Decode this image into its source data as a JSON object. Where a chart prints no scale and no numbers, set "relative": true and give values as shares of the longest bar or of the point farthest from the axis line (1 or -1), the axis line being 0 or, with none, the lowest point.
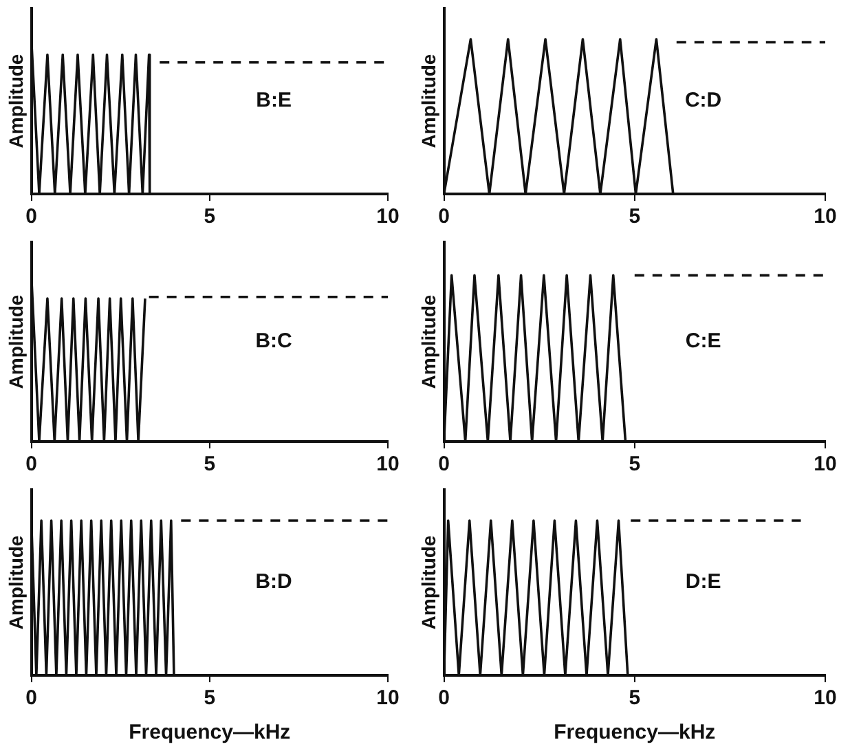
{
  "chart_data": [
    {
      "type": "line",
      "relative": true,
      "ylabel": "Amplitude",
      "annotations": [
        "B:E"
      ],
      "xlim": [
        0,
        10
      ],
      "xticks": [
        0,
        5,
        10
      ],
      "series": [
        {
          "color": "#111111",
          "x": [
            0,
            0.22,
            0.45,
            0.66,
            0.88,
            1.09,
            1.3,
            1.51,
            1.73,
            1.92,
            2.12,
            2.33,
            2.55,
            2.74,
            2.93,
            3.12,
            3.3,
            3.32
          ],
          "values": [
            1,
            0,
            0.9,
            0,
            0.9,
            0,
            0.9,
            0,
            0.9,
            0,
            0.9,
            0,
            0.9,
            0,
            0.9,
            0,
            0.9,
            0
          ]
        },
        {
          "color": "#111111",
          "line_style": "dashed",
          "x": [
            3.6,
            10
          ],
          "values": [
            0.85,
            0.85
          ]
        }
      ]
    },
    {
      "type": "line",
      "relative": true,
      "ylabel": "Amplitude",
      "annotations": [
        "C:D"
      ],
      "xlim": [
        0,
        10
      ],
      "xticks": [
        0,
        5,
        10
      ],
      "series": [
        {
          "color": "#111111",
          "x": [
            0,
            0.7,
            1.19,
            1.68,
            2.14,
            2.66,
            3.15,
            3.64,
            4.1,
            4.62,
            5.03,
            5.57,
            6.01
          ],
          "values": [
            0,
            1,
            0,
            1,
            0,
            1,
            0,
            1,
            0,
            1,
            0,
            1,
            0
          ]
        },
        {
          "color": "#111111",
          "line_style": "dashed",
          "x": [
            6.1,
            10
          ],
          "values": [
            0.98,
            0.98
          ]
        }
      ]
    },
    {
      "type": "line",
      "relative": true,
      "ylabel": "Amplitude",
      "annotations": [
        "B:C"
      ],
      "xlim": [
        0,
        10
      ],
      "xticks": [
        0,
        5,
        10
      ],
      "series": [
        {
          "color": "#111111",
          "x": [
            0,
            0.22,
            0.45,
            0.65,
            0.85,
            1.02,
            1.18,
            1.35,
            1.52,
            1.7,
            1.88,
            2.04,
            2.2,
            2.36,
            2.51,
            2.68,
            2.84,
            3.0,
            3.19
          ],
          "values": [
            1,
            0,
            0.86,
            0,
            0.86,
            0,
            0.86,
            0,
            0.86,
            0,
            0.86,
            0,
            0.86,
            0,
            0.86,
            0,
            0.86,
            0,
            0.86
          ]
        },
        {
          "color": "#111111",
          "line_style": "dashed",
          "x": [
            3.3,
            10
          ],
          "values": [
            0.87,
            0.87
          ]
        }
      ]
    },
    {
      "type": "line",
      "relative": true,
      "ylabel": "Amplitude",
      "annotations": [
        "C:E"
      ],
      "xlim": [
        0,
        10
      ],
      "xticks": [
        0,
        5,
        10
      ],
      "series": [
        {
          "color": "#111111",
          "x": [
            0,
            0.2,
            0.56,
            0.8,
            1.15,
            1.43,
            1.74,
            2.02,
            2.31,
            2.62,
            2.94,
            3.22,
            3.53,
            3.84,
            4.16,
            4.44,
            4.76
          ],
          "values": [
            0,
            1,
            0,
            1,
            0,
            1,
            0,
            1,
            0,
            1,
            0,
            1,
            0,
            1,
            0,
            1,
            0
          ]
        },
        {
          "color": "#111111",
          "line_style": "dashed",
          "x": [
            5,
            10
          ],
          "values": [
            1,
            1
          ]
        }
      ]
    },
    {
      "type": "line",
      "relative": true,
      "ylabel": "Amplitude",
      "xlabel": "Frequency—kHz",
      "annotations": [
        "B:D"
      ],
      "xlim": [
        0,
        10
      ],
      "xticks": [
        0,
        5,
        10
      ],
      "series": [
        {
          "color": "#111111",
          "x": [
            0,
            0.14,
            0.28,
            0.42,
            0.56,
            0.7,
            0.84,
            0.98,
            1.12,
            1.26,
            1.4,
            1.54,
            1.68,
            1.82,
            1.96,
            2.1,
            2.24,
            2.38,
            2.52,
            2.66,
            2.8,
            2.94,
            3.08,
            3.22,
            3.36,
            3.5,
            3.64,
            3.78,
            3.92,
            4.0
          ],
          "values": [
            1,
            0,
            1,
            0,
            1,
            0,
            1,
            0,
            1,
            0,
            1,
            0,
            1,
            0,
            1,
            0,
            1,
            0,
            1,
            0,
            1,
            0,
            1,
            0,
            1,
            0,
            1,
            0,
            1,
            0
          ]
        },
        {
          "color": "#111111",
          "line_style": "dashed",
          "x": [
            4.2,
            10
          ],
          "values": [
            1,
            1
          ]
        }
      ]
    },
    {
      "type": "line",
      "relative": true,
      "ylabel": "Amplitude",
      "xlabel": "Frequency—kHz",
      "annotations": [
        "D:E"
      ],
      "xlim": [
        0,
        10
      ],
      "xticks": [
        0,
        5,
        10
      ],
      "series": [
        {
          "color": "#111111",
          "x": [
            0,
            0.11,
            0.39,
            0.67,
            0.95,
            1.23,
            1.51,
            1.79,
            2.07,
            2.35,
            2.63,
            2.9,
            3.18,
            3.46,
            3.74,
            4.02,
            4.3,
            4.58,
            4.82
          ],
          "values": [
            0,
            1,
            0,
            1,
            0,
            1,
            0,
            1,
            0,
            1,
            0,
            1,
            0,
            1,
            0,
            1,
            0,
            1,
            0
          ]
        },
        {
          "color": "#111111",
          "line_style": "dashed",
          "x": [
            4.9,
            9.36
          ],
          "values": [
            1,
            1
          ]
        }
      ]
    }
  ]
}
